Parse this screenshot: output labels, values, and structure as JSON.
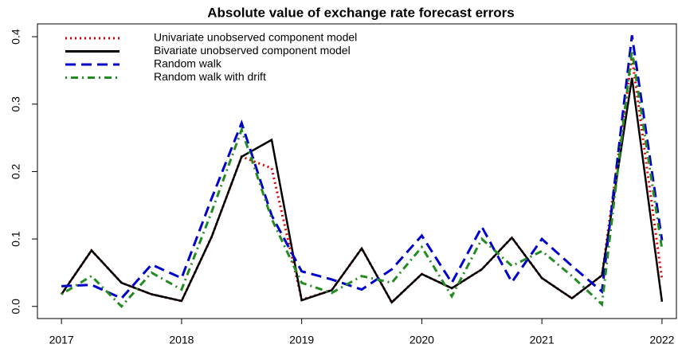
{
  "chart_data": {
    "type": "line",
    "title": "Absolute value of exchange rate forecast errors",
    "x": [
      2017,
      2017.25,
      2017.5,
      2017.75,
      2018,
      2018.25,
      2018.5,
      2018.75,
      2019,
      2019.25,
      2019.5,
      2019.75,
      2020,
      2020.25,
      2020.5,
      2020.75,
      2021,
      2021.25,
      2021.5,
      2021.75,
      2022
    ],
    "series": [
      {
        "name": "Univariate unobserved component model",
        "color": "#dd0000",
        "style": "dotted",
        "values": [
          0.018,
          0.083,
          0.035,
          0.018,
          0.008,
          0.103,
          0.222,
          0.205,
          0.01,
          0.024,
          0.086,
          0.006,
          0.048,
          0.027,
          0.055,
          0.102,
          0.042,
          0.012,
          0.046,
          0.37,
          0.04
        ]
      },
      {
        "name": "Bivariate unobserved component model",
        "color": "#000000",
        "style": "solid",
        "values": [
          0.018,
          0.083,
          0.035,
          0.018,
          0.008,
          0.103,
          0.222,
          0.247,
          0.009,
          0.024,
          0.086,
          0.006,
          0.048,
          0.027,
          0.055,
          0.102,
          0.042,
          0.012,
          0.046,
          0.339,
          0.007
        ]
      },
      {
        "name": "Random walk",
        "color": "#0000cc",
        "style": "dashed",
        "values": [
          0.03,
          0.032,
          0.012,
          0.062,
          0.042,
          0.16,
          0.272,
          0.135,
          0.052,
          0.04,
          0.025,
          0.055,
          0.105,
          0.035,
          0.118,
          0.036,
          0.1,
          0.06,
          0.022,
          0.402,
          0.098
        ]
      },
      {
        "name": "Random walk with drift",
        "color": "#228b22",
        "style": "dotdash",
        "values": [
          0.018,
          0.045,
          0.0,
          0.05,
          0.025,
          0.14,
          0.262,
          0.13,
          0.035,
          0.02,
          0.045,
          0.035,
          0.088,
          0.015,
          0.1,
          0.06,
          0.082,
          0.045,
          0.003,
          0.38,
          0.085
        ]
      }
    ],
    "xlim": [
      2016.8,
      2022.12
    ],
    "xticks": [
      2017,
      2018,
      2019,
      2020,
      2021,
      2022
    ],
    "ylim": [
      -0.018,
      0.419
    ],
    "yticks": [
      {
        "value": 0,
        "label": "0.0"
      },
      0.1,
      0.2,
      0.3,
      0.4
    ],
    "legend": "top-left"
  }
}
